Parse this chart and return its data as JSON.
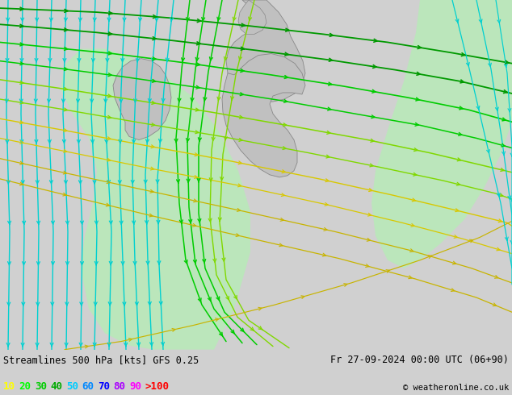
{
  "title_left": "Streamlines 500 hPa [kts] GFS 0.25",
  "title_right": "Fr 27-09-2024 00:00 UTC (06+90)",
  "copyright": "© weatheronline.co.uk",
  "legend_values": [
    "10",
    "20",
    "30",
    "40",
    "50",
    "60",
    "70",
    "80",
    "90",
    ">100"
  ],
  "legend_colors": [
    "#ffff00",
    "#00ff00",
    "#00cc00",
    "#00aa00",
    "#00ccff",
    "#0088ff",
    "#0000ff",
    "#aa00ff",
    "#ff00ff",
    "#ff0000"
  ],
  "bg_color": "#d0d0d0",
  "map_bg": "#d8d8d8",
  "land_color": "#c0c0c0",
  "green_area_color": "#b8eab8",
  "fig_width": 6.34,
  "fig_height": 4.9,
  "dpi": 100,
  "cyan": "#00d0d0",
  "lime": "#80d800",
  "green_bright": "#00cc00",
  "green_dark": "#009900",
  "yellow": "#d8c800",
  "yellow2": "#c8b400"
}
